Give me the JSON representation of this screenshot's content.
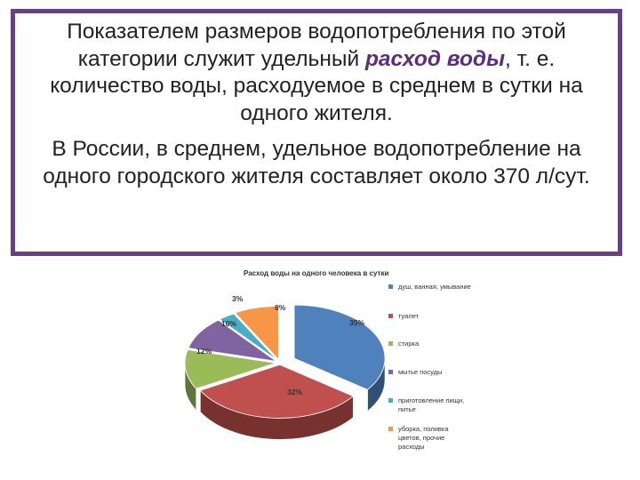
{
  "slide": {
    "para1": {
      "before": "Показателем размеров водопотребления по этой категории служит удельный ",
      "emphasis": "расход воды",
      "after": ", т. е. количество воды, расходуемое в среднем в сутки на одного жителя."
    },
    "para2": "В России, в среднем, удельное водопотребление на одного городского жителя составляет около 370 л/сут."
  },
  "chart_data": {
    "type": "pie",
    "title": "Расход воды на одного человека в сутки",
    "series": [
      {
        "name": "душ, ванная, умывание",
        "value": 35,
        "label": "35%",
        "color": "#4f81bd"
      },
      {
        "name": "туалет",
        "value": 32,
        "label": "32%",
        "color": "#c0504d"
      },
      {
        "name": "стирка",
        "value": 12,
        "label": "12%",
        "color": "#9bbb59"
      },
      {
        "name": "мытье посуды",
        "value": 10,
        "label": "10%",
        "color": "#8064a2"
      },
      {
        "name": "приготовление пищи, питье",
        "value": 3,
        "label": "3%",
        "color": "#4bacc6"
      },
      {
        "name": "уборка, поливка цветов, прочие расходы",
        "value": 8,
        "label": "8%",
        "color": "#f79646"
      }
    ],
    "legend_position": "right"
  }
}
